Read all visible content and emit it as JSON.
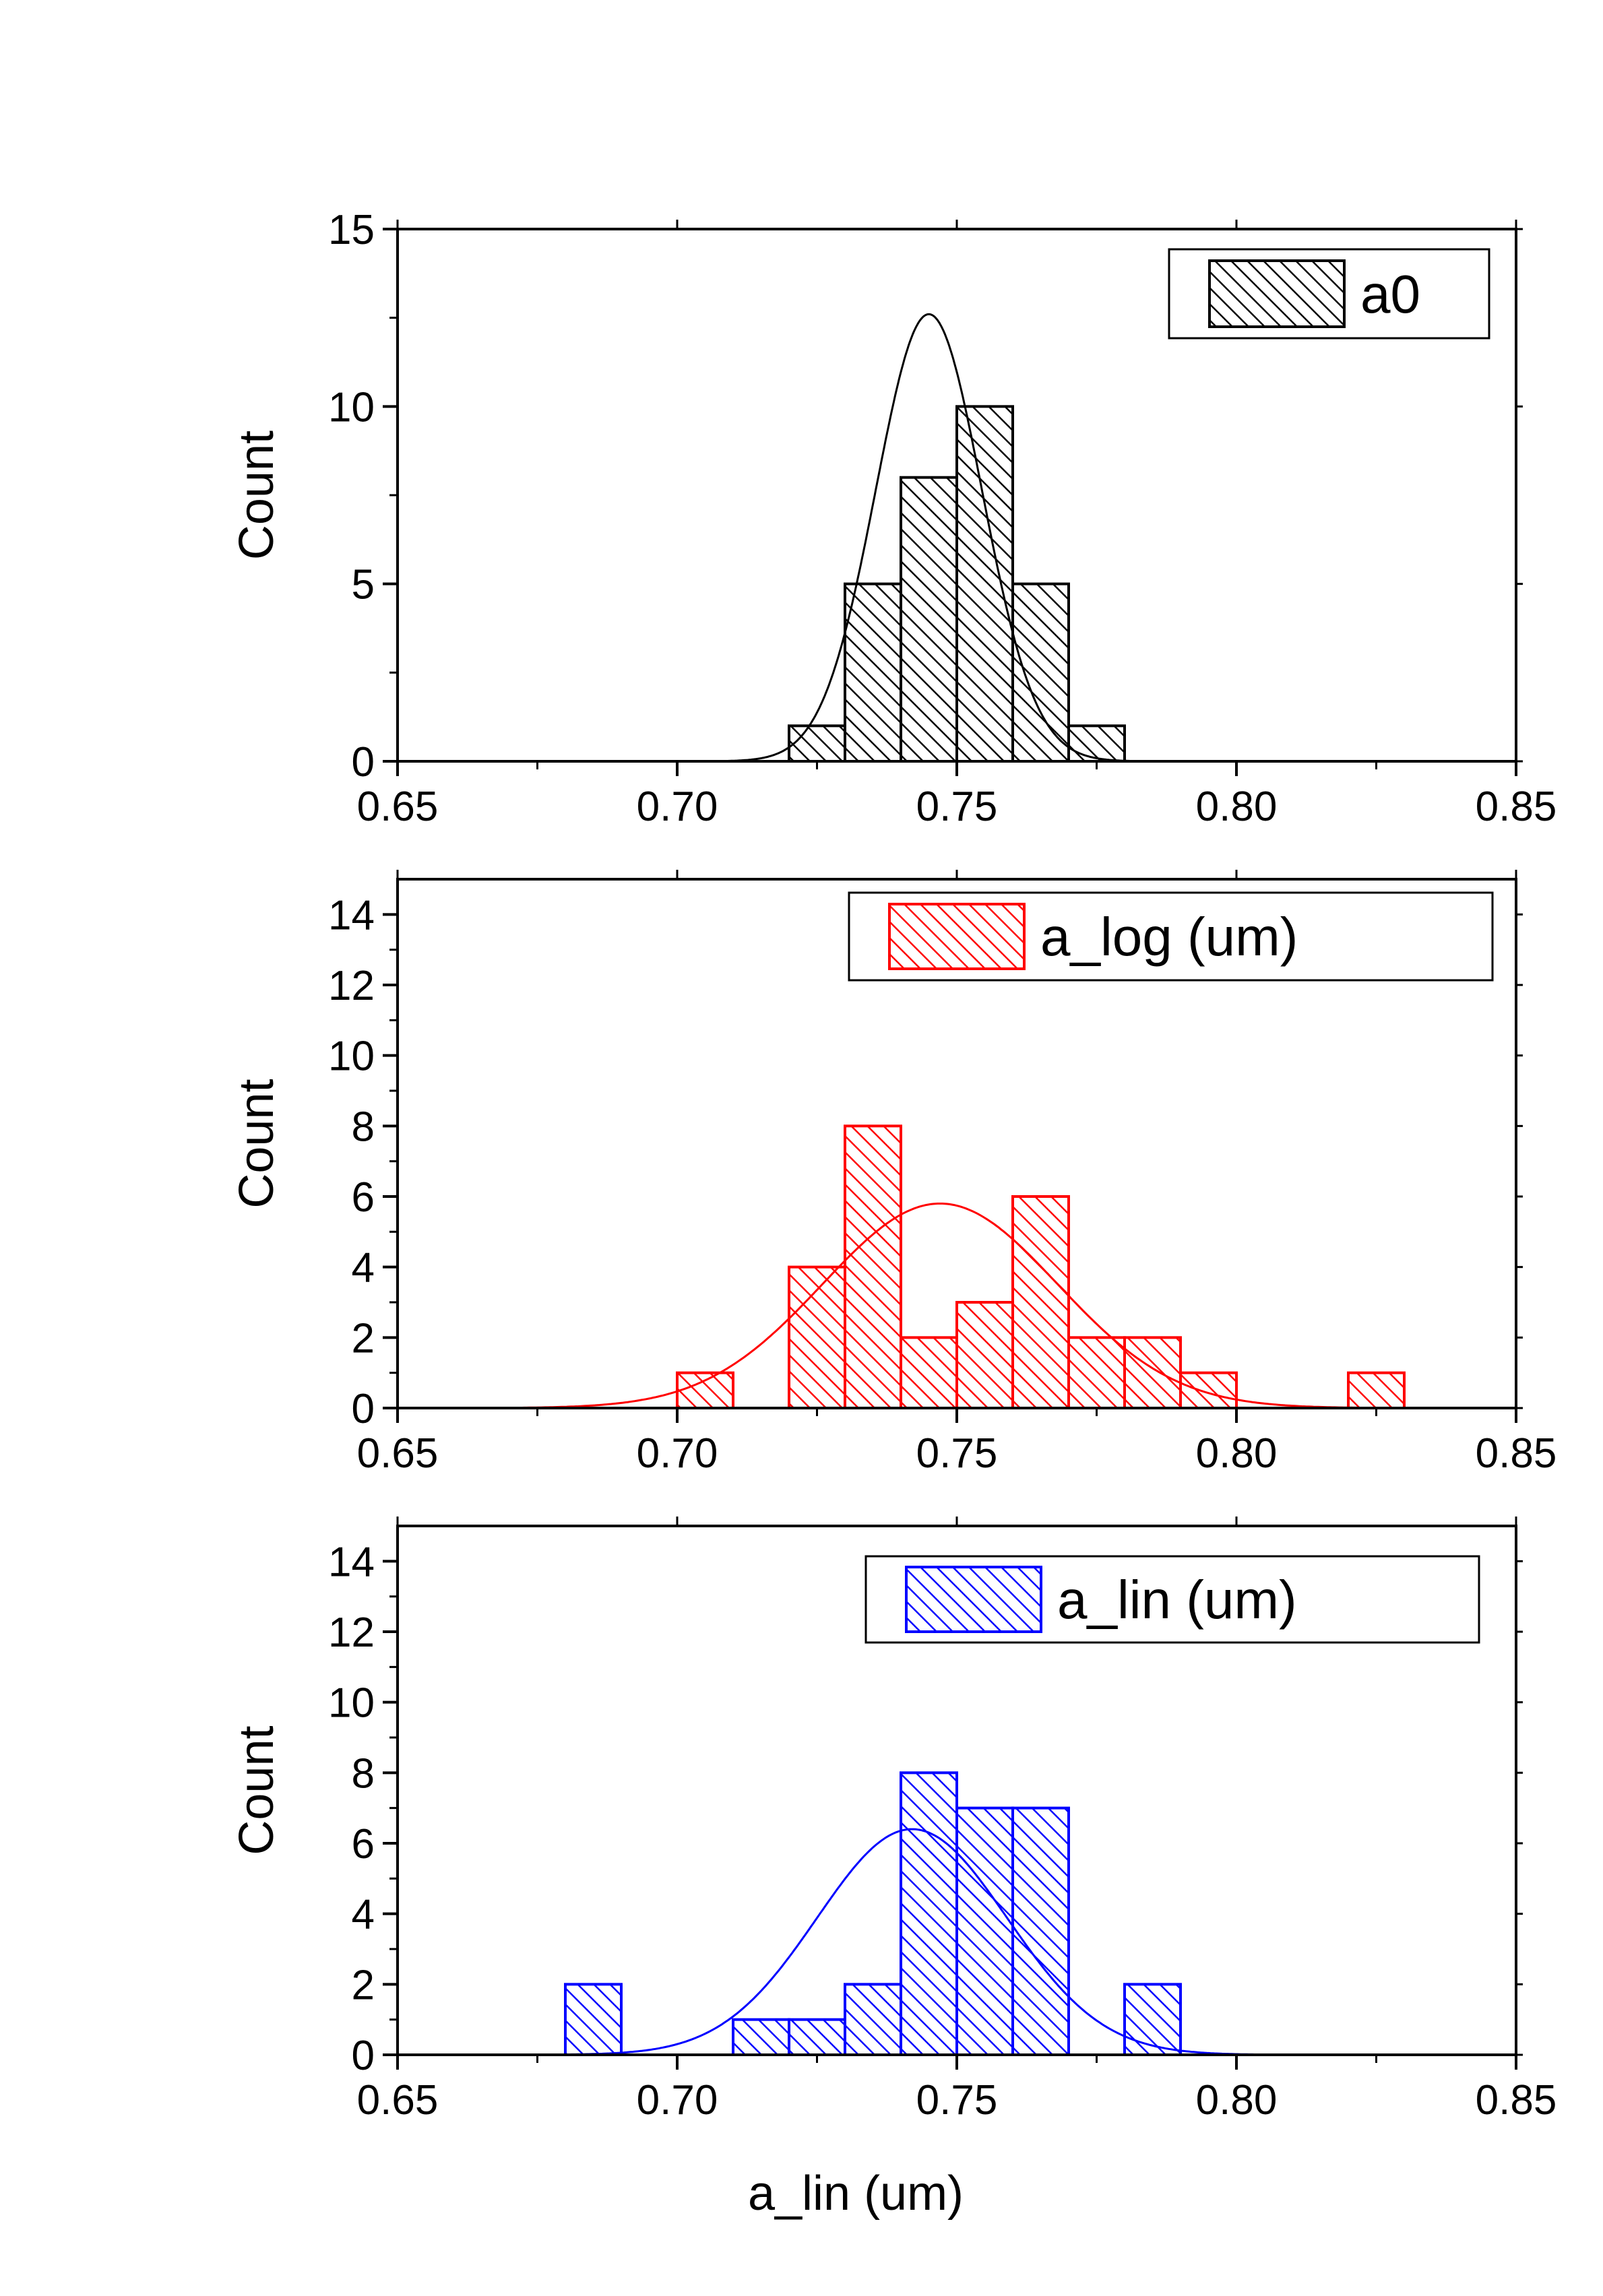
{
  "chart_data": [
    {
      "type": "bar",
      "name": "a0",
      "color": "#000000",
      "ylabel": "Count",
      "xlabel": "",
      "xlim": [
        0.65,
        0.85
      ],
      "ylim": [
        0,
        15
      ],
      "xticks": [
        "0.65",
        "0.70",
        "0.75",
        "0.80",
        "0.85"
      ],
      "yticks": [
        0,
        5,
        10,
        15
      ],
      "bin_width": 0.01,
      "bins": [
        {
          "x": 0.72,
          "count": 1
        },
        {
          "x": 0.73,
          "count": 5
        },
        {
          "x": 0.74,
          "count": 8
        },
        {
          "x": 0.75,
          "count": 10
        },
        {
          "x": 0.76,
          "count": 5
        },
        {
          "x": 0.77,
          "count": 1
        }
      ],
      "fit": {
        "type": "gaussian",
        "mean": 0.745,
        "sigma": 0.0095,
        "peak": 12.6
      },
      "legend": {
        "label": "a0",
        "position": "top-right"
      }
    },
    {
      "type": "bar",
      "name": "a_log (um)",
      "color": "#ff0000",
      "ylabel": "Count",
      "xlabel": "",
      "xlim": [
        0.65,
        0.85
      ],
      "ylim": [
        0,
        15
      ],
      "xticks": [
        "0.65",
        "0.70",
        "0.75",
        "0.80",
        "0.85"
      ],
      "yticks": [
        0,
        2,
        4,
        6,
        8,
        10,
        12,
        14
      ],
      "bin_width": 0.01,
      "bins": [
        {
          "x": 0.7,
          "count": 1
        },
        {
          "x": 0.72,
          "count": 4
        },
        {
          "x": 0.73,
          "count": 8
        },
        {
          "x": 0.74,
          "count": 2
        },
        {
          "x": 0.75,
          "count": 3
        },
        {
          "x": 0.76,
          "count": 6
        },
        {
          "x": 0.77,
          "count": 2
        },
        {
          "x": 0.78,
          "count": 2
        },
        {
          "x": 0.79,
          "count": 1
        },
        {
          "x": 0.82,
          "count": 1
        }
      ],
      "fit": {
        "type": "gaussian",
        "mean": 0.747,
        "sigma": 0.021,
        "peak": 5.8
      },
      "legend": {
        "label": "a_log (um)",
        "position": "top-right"
      }
    },
    {
      "type": "bar",
      "name": "a_lin (um)",
      "color": "#0000ff",
      "ylabel": "Count",
      "xlabel": "a_lin (um)",
      "xlim": [
        0.65,
        0.85
      ],
      "ylim": [
        0,
        15
      ],
      "xticks": [
        "0.65",
        "0.70",
        "0.75",
        "0.80",
        "0.85"
      ],
      "yticks": [
        0,
        2,
        4,
        6,
        8,
        10,
        12,
        14
      ],
      "bin_width": 0.01,
      "bins": [
        {
          "x": 0.68,
          "count": 2
        },
        {
          "x": 0.71,
          "count": 1
        },
        {
          "x": 0.72,
          "count": 1
        },
        {
          "x": 0.73,
          "count": 2
        },
        {
          "x": 0.74,
          "count": 8
        },
        {
          "x": 0.75,
          "count": 7
        },
        {
          "x": 0.76,
          "count": 7
        },
        {
          "x": 0.78,
          "count": 2
        }
      ],
      "fit": {
        "type": "gaussian",
        "mean": 0.742,
        "sigma": 0.017,
        "peak": 6.4
      },
      "legend": {
        "label": "a_lin (um)",
        "position": "top-right"
      }
    }
  ]
}
